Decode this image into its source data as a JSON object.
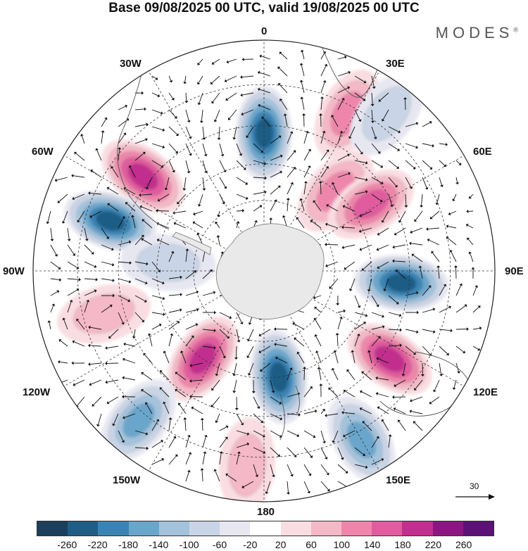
{
  "title": "Base 09/08/2025 00 UTC, valid 19/08/2025 00 UTC",
  "brand": {
    "name": "MODES",
    "mark": "®"
  },
  "longitude_labels": {
    "lon0": "0",
    "lon30e": "30E",
    "lon60e": "60E",
    "lon90e": "90E",
    "lon120e": "120E",
    "lon150e": "150E",
    "lon180": "180",
    "lon150w": "150W",
    "lon120w": "120W",
    "lon90w": "90W",
    "lon60w": "60W",
    "lon30w": "30W"
  },
  "vector_scale": {
    "label": "30"
  },
  "colorbar": {
    "colors": [
      "#1b3f5c",
      "#1f5d86",
      "#3a84b5",
      "#6aa6cc",
      "#a3c3dd",
      "#c9d5e6",
      "#e6e7f1",
      "#ffffff",
      "#f9dde2",
      "#f5b8c7",
      "#ee86ab",
      "#e05c9f",
      "#c22f8e",
      "#8b1681",
      "#5d1077"
    ],
    "ticks": [
      "-260",
      "-220",
      "-180",
      "-140",
      "-100",
      "-60",
      "-20",
      "20",
      "60",
      "100",
      "140",
      "180",
      "220",
      "260"
    ]
  },
  "map_data": {
    "projection": "south-polar-stereographic",
    "field": "geopotential height anomaly",
    "anomaly_centers": [
      {
        "name": "low-south-atlantic-0",
        "lon": 0,
        "lat": -52,
        "value": -260
      },
      {
        "name": "high-30e",
        "lon": 28,
        "lat": -42,
        "value": 140
      },
      {
        "name": "low-30e-coast",
        "lon": 38,
        "lat": -37,
        "value": -100
      },
      {
        "name": "high-50w",
        "lon": -52,
        "lat": -48,
        "value": 220
      },
      {
        "name": "low-70w",
        "lon": -72,
        "lat": -46,
        "value": -260
      },
      {
        "name": "high-40e",
        "lon": 42,
        "lat": -60,
        "value": 140
      },
      {
        "name": "high-55e",
        "lon": 58,
        "lat": -55,
        "value": 180
      },
      {
        "name": "low-95e",
        "lon": 95,
        "lat": -52,
        "value": -260
      },
      {
        "name": "low-80w",
        "lon": -85,
        "lat": -63,
        "value": -100
      },
      {
        "name": "high-105w",
        "lon": -105,
        "lat": -45,
        "value": 100
      },
      {
        "name": "high-145w",
        "lon": -145,
        "lat": -60,
        "value": 220
      },
      {
        "name": "low-170e",
        "lon": 172,
        "lat": -60,
        "value": -260
      },
      {
        "name": "high-125e",
        "lon": 125,
        "lat": -48,
        "value": 220
      },
      {
        "name": "low-140w",
        "lon": -140,
        "lat": -38,
        "value": -180
      },
      {
        "name": "high-175w",
        "lon": -175,
        "lat": -38,
        "value": 100
      },
      {
        "name": "low-150e",
        "lon": 150,
        "lat": -38,
        "value": -180
      }
    ]
  }
}
